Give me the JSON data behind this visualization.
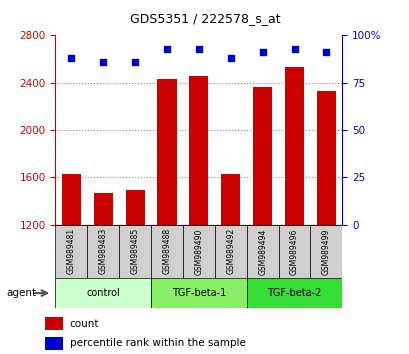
{
  "title": "GDS5351 / 222578_s_at",
  "samples": [
    "GSM989481",
    "GSM989483",
    "GSM989485",
    "GSM989488",
    "GSM989490",
    "GSM989492",
    "GSM989494",
    "GSM989496",
    "GSM989499"
  ],
  "counts": [
    1630,
    1470,
    1490,
    2430,
    2460,
    1630,
    2360,
    2530,
    2330
  ],
  "percentile_ranks": [
    88,
    86,
    86,
    93,
    93,
    88,
    91,
    93,
    91
  ],
  "groups": [
    {
      "label": "control",
      "indices": [
        0,
        1,
        2
      ],
      "color": "#ccffcc"
    },
    {
      "label": "TGF-beta-1",
      "indices": [
        3,
        4,
        5
      ],
      "color": "#88ee66"
    },
    {
      "label": "TGF-beta-2",
      "indices": [
        6,
        7,
        8
      ],
      "color": "#33dd33"
    }
  ],
  "ylim_left": [
    1200,
    2800
  ],
  "ylim_right": [
    0,
    100
  ],
  "yticks_left": [
    1200,
    1600,
    2000,
    2400,
    2800
  ],
  "yticks_right": [
    0,
    25,
    50,
    75,
    100
  ],
  "ytick_labels_right": [
    "0",
    "25",
    "50",
    "75",
    "100%"
  ],
  "bar_color": "#cc0000",
  "dot_color": "#0000cc",
  "bar_width": 0.6,
  "count_label": "count",
  "percentile_label": "percentile rank within the sample",
  "agent_label": "agent",
  "background_plot": "#ffffff",
  "sample_box_color": "#d0d0d0",
  "grid_color": "#888888",
  "title_color": "#000000",
  "left_axis_color": "#cc0000",
  "right_axis_color": "#0000cc"
}
